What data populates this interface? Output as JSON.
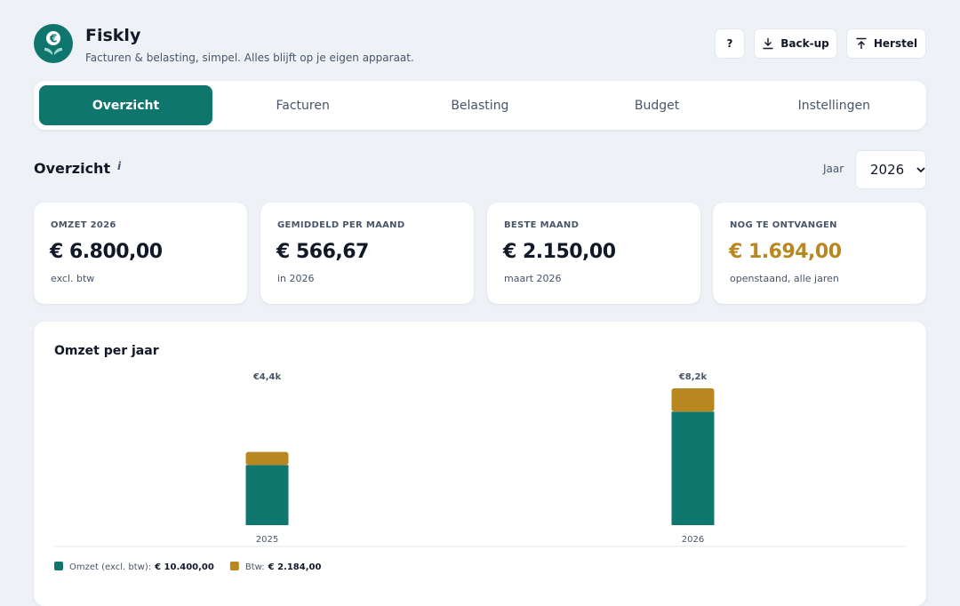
{
  "header": {
    "title": "Fiskly",
    "subtitle": "Facturen & belasting, simpel. Alles blijft op je eigen apparaat."
  },
  "actions": [
    "?",
    "Back-up",
    "Herstel"
  ],
  "tabs": [
    "Overzicht",
    "Facturen",
    "Belasting",
    "Budget",
    "Instellingen"
  ],
  "active_tab": 0,
  "section": {
    "title": "Overzicht",
    "info": "i",
    "year_label": "Jaar",
    "year": "2026"
  },
  "stats": [
    {
      "label": "OMZET 2026",
      "value": "€ 6.800,00",
      "note": "excl. btw"
    },
    {
      "label": "GEMIDDELD PER MAAND",
      "value": "€ 566,67",
      "note": "in 2026"
    },
    {
      "label": "BESTE MAAND",
      "value": "€ 2.150,00",
      "note": "maart 2026"
    },
    {
      "label": "NOG TE ONTVANGEN",
      "value": "€ 1.694,00",
      "note": "openstaand, alle jaren",
      "value_color": "#b8871f"
    }
  ],
  "chart_data": {
    "type": "bar",
    "stacked": true,
    "title": "Omzet per jaar",
    "categories": [
      "2025",
      "2026"
    ],
    "total_labels": [
      "€4,4k",
      "€8,2k"
    ],
    "series": [
      {
        "name": "Omzet (excl. btw):",
        "legend_total": "€ 10.400,00",
        "color": "#0f766e",
        "values": [
          3600,
          6800
        ]
      },
      {
        "name": "Btw:",
        "legend_total": "€ 2.184,00",
        "color": "#b8871f",
        "values": [
          784,
          1400
        ]
      }
    ]
  }
}
